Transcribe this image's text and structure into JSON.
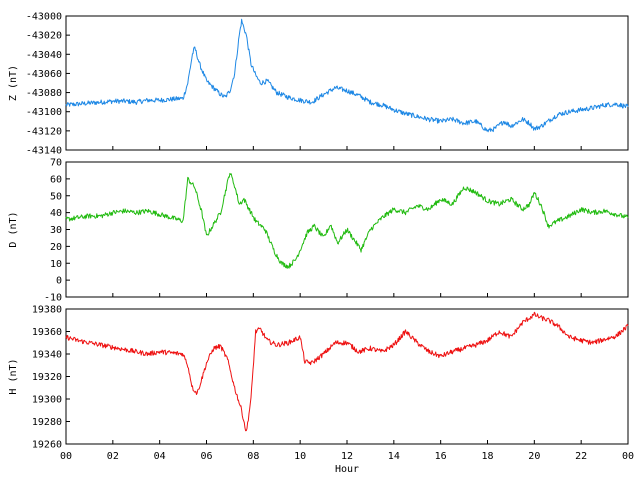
{
  "chart_data": [
    {
      "type": "line",
      "ylabel": "Z (nT)",
      "ylim": [
        -43140,
        -43000
      ],
      "yticks": [
        -43000,
        -43020,
        -43040,
        -43060,
        -43080,
        -43100,
        -43120,
        -43140
      ],
      "color": "#1e88e5",
      "series": [
        {
          "x": [
            0,
            0.5,
            1,
            1.5,
            2,
            2.5,
            3,
            3.5,
            4,
            4.5,
            5,
            5.2,
            5.4,
            5.5,
            5.7,
            6,
            6.3,
            6.6,
            6.8,
            7,
            7.2,
            7.4,
            7.5,
            7.7,
            7.9,
            8.1,
            8.3,
            8.6,
            9,
            9.5,
            10,
            10.5,
            11,
            11.5,
            12,
            12.5,
            13,
            13.5,
            14,
            14.5,
            15,
            15.5,
            16,
            16.5,
            17,
            17.5,
            18,
            18.3,
            18.7,
            19,
            19.5,
            19.8,
            20,
            20.3,
            20.7,
            21,
            21.5,
            22,
            22.5,
            23,
            23.5,
            24
          ],
          "y": [
            -43093,
            -43092,
            -43091,
            -43090,
            -43089,
            -43089,
            -43090,
            -43088,
            -43088,
            -43087,
            -43086,
            -43070,
            -43040,
            -43033,
            -43050,
            -43068,
            -43075,
            -43082,
            -43085,
            -43078,
            -43060,
            -43020,
            -43005,
            -43020,
            -43050,
            -43062,
            -43070,
            -43068,
            -43080,
            -43085,
            -43088,
            -43090,
            -43082,
            -43075,
            -43078,
            -43083,
            -43090,
            -43093,
            -43098,
            -43102,
            -43105,
            -43108,
            -43110,
            -43108,
            -43112,
            -43110,
            -43120,
            -43118,
            -43110,
            -43115,
            -43108,
            -43112,
            -43118,
            -43115,
            -43108,
            -43103,
            -43100,
            -43098,
            -43096,
            -43093,
            -43092,
            -43095
          ]
        }
      ]
    },
    {
      "type": "line",
      "ylabel": "D (nT)",
      "ylim": [
        -10,
        70
      ],
      "yticks": [
        70,
        60,
        50,
        40,
        30,
        20,
        10,
        0,
        -10
      ],
      "color": "#22bb11",
      "series": [
        {
          "x": [
            0,
            0.5,
            1,
            1.5,
            2,
            2.5,
            3,
            3.5,
            4,
            4.5,
            5,
            5.2,
            5.5,
            5.8,
            6,
            6.3,
            6.6,
            7,
            7.2,
            7.4,
            7.6,
            7.9,
            8.1,
            8.5,
            8.9,
            9.2,
            9.5,
            9.8,
            10,
            10.3,
            10.6,
            11,
            11.3,
            11.6,
            12,
            12.3,
            12.6,
            13,
            13.5,
            14,
            14.5,
            15,
            15.5,
            16,
            16.5,
            17,
            17.5,
            18,
            18.5,
            19,
            19.5,
            19.8,
            20,
            20.3,
            20.6,
            21,
            21.5,
            22,
            22.5,
            23,
            23.5,
            24
          ],
          "y": [
            36,
            37,
            38,
            38,
            40,
            41,
            40,
            41,
            39,
            37,
            35,
            60,
            55,
            40,
            26,
            33,
            40,
            64,
            56,
            45,
            48,
            40,
            35,
            30,
            17,
            10,
            8,
            12,
            18,
            28,
            32,
            25,
            33,
            22,
            30,
            24,
            18,
            30,
            37,
            42,
            40,
            44,
            42,
            48,
            45,
            55,
            52,
            47,
            45,
            48,
            42,
            45,
            52,
            44,
            32,
            35,
            38,
            42,
            40,
            41,
            39,
            37
          ]
        }
      ]
    },
    {
      "type": "line",
      "ylabel": "H (nT)",
      "ylim": [
        19260,
        19380
      ],
      "yticks": [
        19380,
        19360,
        19340,
        19320,
        19300,
        19280,
        19260
      ],
      "color": "#ee1111",
      "series": [
        {
          "x": [
            0,
            0.5,
            1,
            1.5,
            2,
            2.5,
            3,
            3.5,
            4,
            4.5,
            5,
            5.2,
            5.4,
            5.6,
            5.8,
            6,
            6.3,
            6.6,
            6.9,
            7.2,
            7.5,
            7.7,
            7.9,
            8.1,
            8.3,
            8.6,
            9,
            9.5,
            10,
            10.2,
            10.5,
            11,
            11.5,
            12,
            12.5,
            13,
            13.5,
            14,
            14.5,
            15,
            15.5,
            16,
            16.5,
            17,
            17.5,
            18,
            18.5,
            19,
            19.5,
            20,
            20.3,
            20.6,
            21,
            21.5,
            22,
            22.5,
            23,
            23.5,
            24
          ],
          "y": [
            19355,
            19352,
            19350,
            19348,
            19346,
            19344,
            19342,
            19340,
            19342,
            19341,
            19340,
            19330,
            19310,
            19305,
            19318,
            19332,
            19345,
            19347,
            19335,
            19310,
            19290,
            19270,
            19300,
            19360,
            19362,
            19352,
            19348,
            19350,
            19355,
            19333,
            19332,
            19340,
            19350,
            19350,
            19342,
            19345,
            19342,
            19348,
            19360,
            19350,
            19342,
            19338,
            19342,
            19345,
            19348,
            19352,
            19360,
            19355,
            19368,
            19375,
            19372,
            19370,
            19365,
            19355,
            19352,
            19350,
            19353,
            19356,
            19365
          ]
        }
      ]
    }
  ],
  "x_axis": {
    "label": "Hour",
    "xlim": [
      0,
      24
    ],
    "ticks": [
      "00",
      "02",
      "04",
      "06",
      "08",
      "10",
      "12",
      "14",
      "16",
      "18",
      "20",
      "22",
      "00"
    ]
  }
}
